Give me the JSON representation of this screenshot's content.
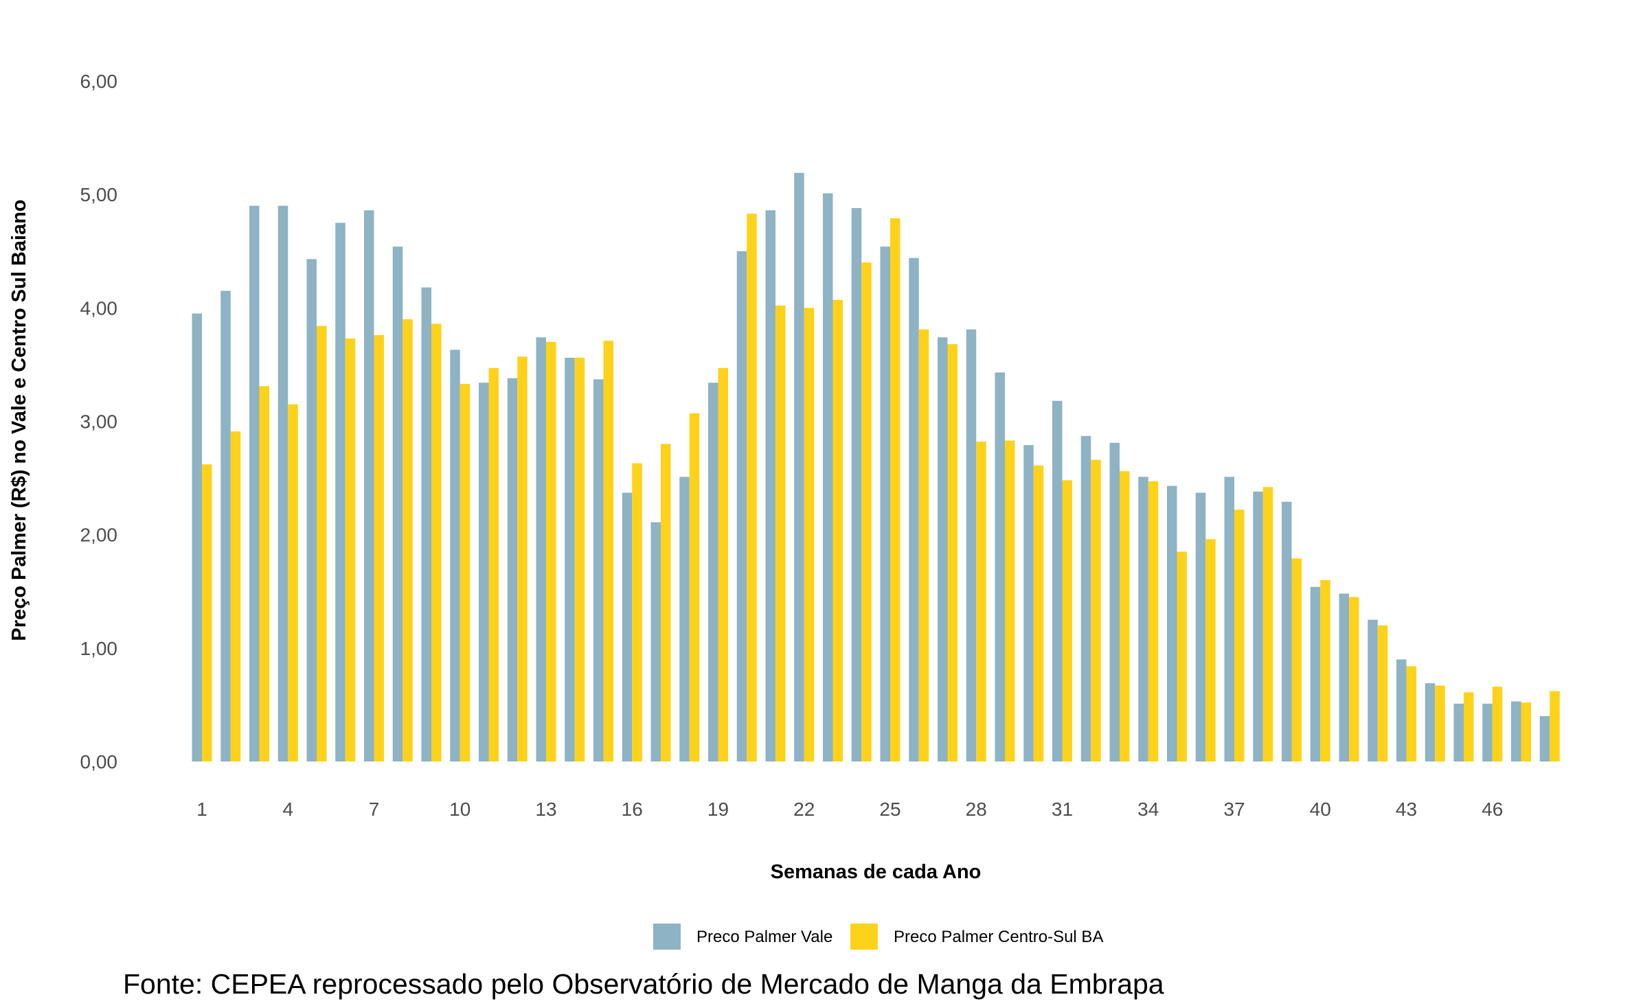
{
  "chart_data": {
    "type": "bar",
    "categories": [
      1,
      2,
      3,
      4,
      5,
      6,
      7,
      8,
      9,
      10,
      11,
      12,
      13,
      14,
      15,
      16,
      17,
      18,
      19,
      20,
      21,
      22,
      23,
      24,
      25,
      26,
      27,
      28,
      29,
      30,
      31,
      32,
      33,
      34,
      35,
      36,
      37,
      38,
      39,
      40,
      41,
      42,
      43,
      44,
      45,
      46,
      47,
      48
    ],
    "x_tick_labels": [
      "1",
      "4",
      "7",
      "10",
      "13",
      "16",
      "19",
      "22",
      "25",
      "28",
      "31",
      "34",
      "37",
      "40",
      "43",
      "46"
    ],
    "y_tick_labels": [
      "0,00",
      "1,00",
      "2,00",
      "3,00",
      "4,00",
      "5,00",
      "6,00"
    ],
    "ylim": [
      0,
      6
    ],
    "xlabel": "Semanas de cada Ano",
    "ylabel": "Preço Palmer (R$) no Vale e Centro Sul Baiano",
    "legend_position": "bottom",
    "series": [
      {
        "name": "Preco Palmer Vale",
        "color": "#8db3c4",
        "values": [
          3.95,
          4.15,
          4.9,
          4.9,
          4.43,
          4.75,
          4.86,
          4.54,
          4.18,
          3.63,
          3.34,
          3.38,
          3.74,
          3.56,
          3.37,
          2.37,
          2.11,
          2.51,
          3.34,
          4.5,
          4.86,
          5.19,
          5.01,
          4.88,
          4.54,
          4.44,
          3.74,
          3.81,
          3.43,
          2.79,
          3.18,
          2.87,
          2.81,
          2.51,
          2.43,
          2.37,
          2.51,
          2.38,
          2.29,
          1.54,
          1.48,
          1.25,
          0.9,
          0.69,
          0.51,
          0.51,
          0.53,
          0.4
        ]
      },
      {
        "name": "Preco Palmer Centro-Sul BA",
        "color": "#ffd21a",
        "values": [
          2.62,
          2.91,
          3.31,
          3.15,
          3.84,
          3.73,
          3.76,
          3.9,
          3.86,
          3.33,
          3.47,
          3.57,
          3.7,
          3.56,
          3.71,
          2.63,
          2.8,
          3.07,
          3.47,
          4.83,
          4.02,
          4.0,
          4.07,
          4.4,
          4.79,
          3.81,
          3.68,
          2.82,
          2.83,
          2.61,
          2.48,
          2.66,
          2.56,
          2.47,
          1.85,
          1.96,
          2.22,
          2.42,
          1.79,
          1.6,
          1.45,
          1.2,
          0.84,
          0.67,
          0.61,
          0.66,
          0.52,
          0.62
        ]
      }
    ]
  },
  "source_text": "Fonte: CEPEA reprocessado pelo Observatório de Mercado de Manga da Embrapa"
}
